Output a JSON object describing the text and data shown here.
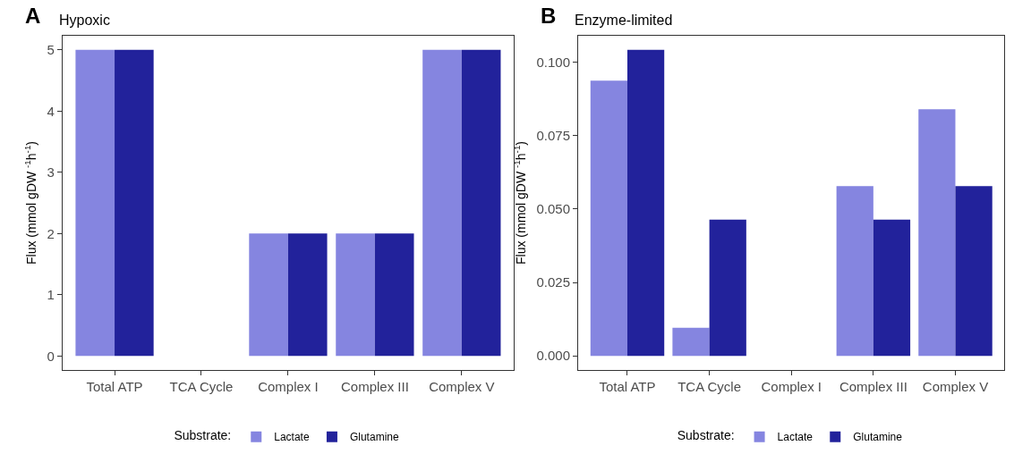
{
  "chart_data": [
    {
      "type": "bar",
      "title": "Hypoxic",
      "annotations": [
        "A"
      ],
      "ylabel": "Flux (mmol gDW $^{-1}$h$^{-1}$)",
      "legend_title": "Substrate:",
      "legend": "bottom",
      "categories": [
        "Total ATP",
        "TCA Cycle",
        "Complex I",
        "Complex III",
        "Complex V"
      ],
      "series": [
        {
          "name": "Lactate",
          "color": "#8585e0",
          "values": [
            5,
            0,
            2,
            2,
            5
          ]
        },
        {
          "name": "Glutamine",
          "color": "#22229b",
          "values": [
            5,
            0,
            2,
            2,
            5
          ]
        }
      ],
      "ylim": [
        -0.23,
        5.23
      ],
      "yticks": [
        0,
        1,
        2,
        3,
        4,
        5
      ]
    },
    {
      "type": "bar",
      "title": "Enzyme-limited",
      "annotations": [
        "B"
      ],
      "ylabel": "Flux (mmol gDW $^{-1}$h$^{-1}$)",
      "legend_title": "Substrate:",
      "legend": "bottom",
      "categories": [
        "Total ATP",
        "TCA Cycle",
        "Complex I",
        "Complex III",
        "Complex V"
      ],
      "series": [
        {
          "name": "Lactate",
          "color": "#8585e0",
          "values": [
            0.0937,
            0.0096,
            0,
            0.0578,
            0.084
          ]
        },
        {
          "name": "Glutamine",
          "color": "#22229b",
          "values": [
            0.1042,
            0.0464,
            0,
            0.0464,
            0.0578
          ]
        }
      ],
      "ylim": [
        -0.0048,
        0.109
      ],
      "yticks": [
        {
          "value": 0,
          "label": "0.000"
        },
        {
          "value": 0.025,
          "label": "0.025"
        },
        {
          "value": 0.05,
          "label": "0.050"
        },
        {
          "value": 0.075,
          "label": "0.075"
        },
        {
          "value": 0.1,
          "label": "0.100"
        }
      ]
    }
  ]
}
